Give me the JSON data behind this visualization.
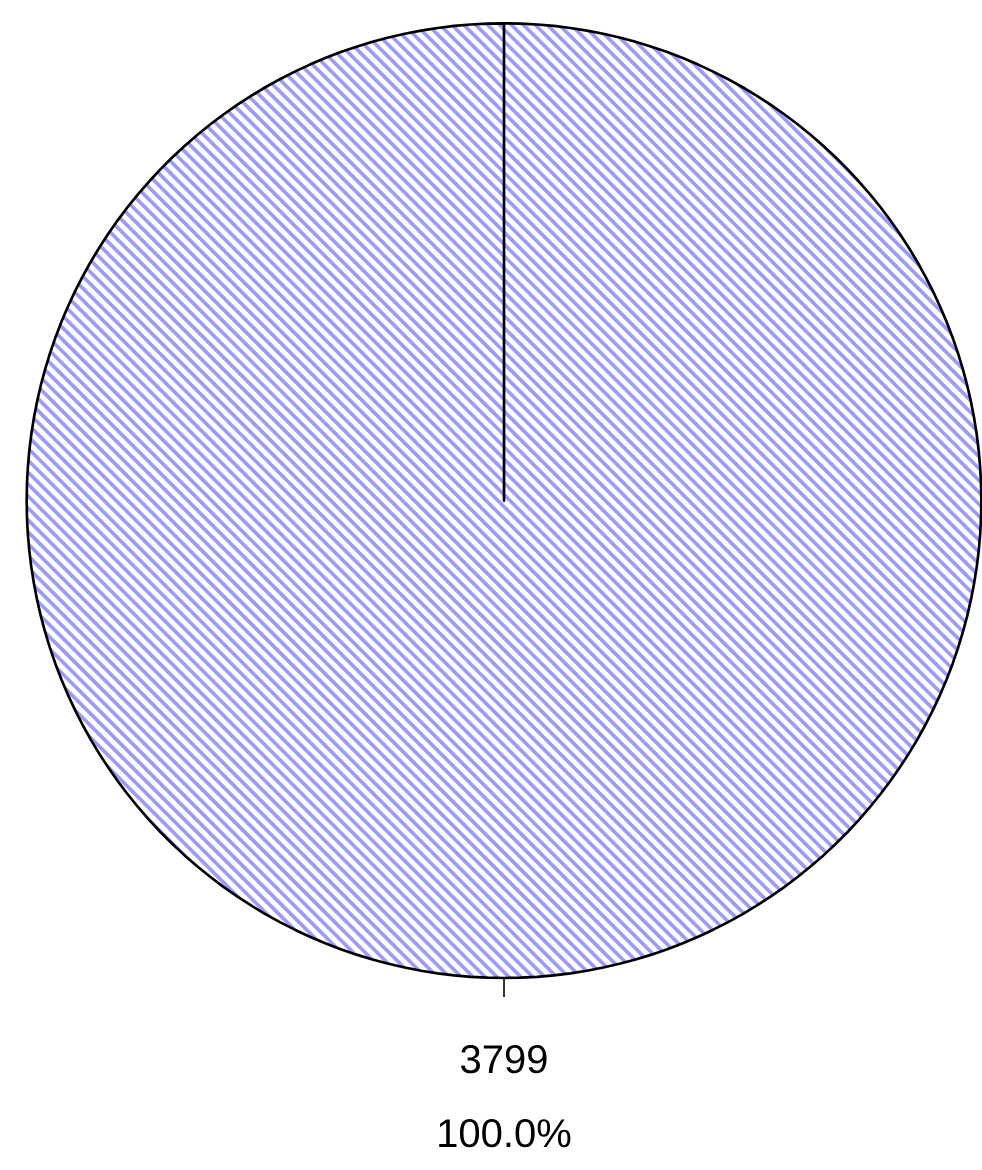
{
  "chart_data": {
    "type": "pie",
    "categories": [
      null
    ],
    "values": [
      3799
    ],
    "colors": [
      "#9a9aff"
    ],
    "data_labels": true,
    "annotations": [
      "100.0%"
    ]
  }
}
